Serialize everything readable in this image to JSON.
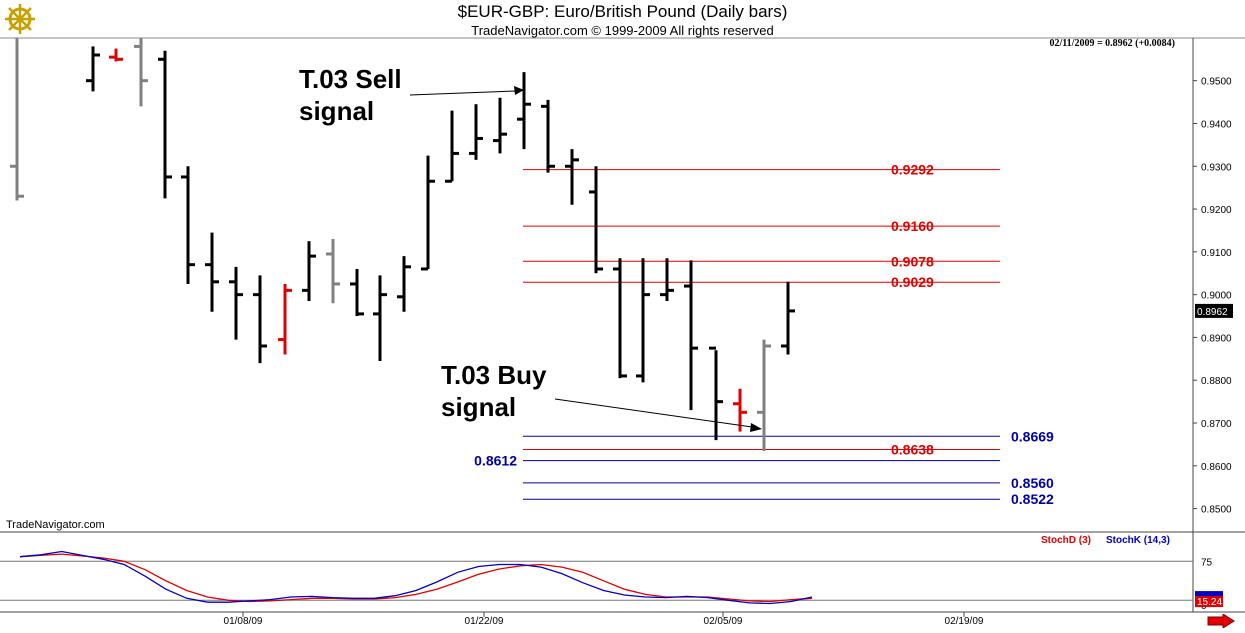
{
  "header": {
    "title": "$EUR-GBP:  Euro/British Pound  (Daily bars)",
    "subtitle": "TradeNavigator.com © 1999-2009 All rights reserved",
    "price_info": "02/11/2009 = 0.8962 (+0.0084)",
    "watermark": "TradeNavigator.com"
  },
  "annotations": {
    "sell": {
      "line1": "T.03 Sell",
      "line2": "signal"
    },
    "buy": {
      "line1": "T.03 Buy",
      "line2": "signal"
    }
  },
  "chart_data": [
    {
      "type": "ohlc",
      "title": "$EUR-GBP:  Euro/British Pound  (Daily bars)",
      "ylim": [
        0.845,
        0.956
      ],
      "y_ticks": [
        "0.9500",
        "0.9400",
        "0.9300",
        "0.9200",
        "0.9100",
        "0.9000",
        "0.8900",
        "0.8800",
        "0.8700",
        "0.8600",
        "0.8500"
      ],
      "x_ticks": [
        "01/08/09",
        "01/22/09",
        "02/05/09",
        "02/19/09"
      ],
      "last_price": "0.8962",
      "bars": [
        {
          "color": "gray",
          "high": 0.96,
          "low": 0.922,
          "open": 0.93,
          "close": 0.923
        },
        {
          "color": "black",
          "high": 0.958,
          "low": 0.9475,
          "open": 0.95,
          "close": 0.956
        },
        {
          "color": "red",
          "high": 0.9575,
          "low": 0.9545,
          "open": 0.9555,
          "close": 0.955
        },
        {
          "color": "gray",
          "high": 0.96,
          "low": 0.944,
          "open": 0.958,
          "close": 0.95
        },
        {
          "color": "black",
          "high": 0.957,
          "low": 0.9225,
          "open": 0.955,
          "close": 0.9275
        },
        {
          "color": "black",
          "high": 0.93,
          "low": 0.9025,
          "open": 0.9275,
          "close": 0.907
        },
        {
          "color": "black",
          "high": 0.9145,
          "low": 0.896,
          "open": 0.907,
          "close": 0.903
        },
        {
          "color": "black",
          "high": 0.9065,
          "low": 0.8895,
          "open": 0.903,
          "close": 0.9
        },
        {
          "color": "black",
          "high": 0.9045,
          "low": 0.884,
          "open": 0.9,
          "close": 0.888
        },
        {
          "color": "red",
          "high": 0.9025,
          "low": 0.886,
          "open": 0.8895,
          "close": 0.901
        },
        {
          "color": "black",
          "high": 0.9125,
          "low": 0.8985,
          "open": 0.901,
          "close": 0.909
        },
        {
          "color": "gray",
          "high": 0.913,
          "low": 0.898,
          "open": 0.9095,
          "close": 0.9025
        },
        {
          "color": "black",
          "high": 0.906,
          "low": 0.895,
          "open": 0.9025,
          "close": 0.8955
        },
        {
          "color": "black",
          "high": 0.9045,
          "low": 0.8845,
          "open": 0.8955,
          "close": 0.9
        },
        {
          "color": "black",
          "high": 0.909,
          "low": 0.896,
          "open": 0.8995,
          "close": 0.9065
        },
        {
          "color": "black",
          "high": 0.9325,
          "low": 0.906,
          "open": 0.906,
          "close": 0.9265
        },
        {
          "color": "black",
          "high": 0.943,
          "low": 0.9265,
          "open": 0.9265,
          "close": 0.933
        },
        {
          "color": "black",
          "high": 0.9445,
          "low": 0.9315,
          "open": 0.933,
          "close": 0.9365
        },
        {
          "color": "black",
          "high": 0.946,
          "low": 0.933,
          "open": 0.936,
          "close": 0.9375
        },
        {
          "color": "black",
          "high": 0.952,
          "low": 0.934,
          "open": 0.941,
          "close": 0.9445
        },
        {
          "color": "black",
          "high": 0.9455,
          "low": 0.9285,
          "open": 0.944,
          "close": 0.93
        },
        {
          "color": "black",
          "high": 0.934,
          "low": 0.921,
          "open": 0.93,
          "close": 0.9315
        },
        {
          "color": "black",
          "high": 0.93,
          "low": 0.905,
          "open": 0.924,
          "close": 0.906
        },
        {
          "color": "black",
          "high": 0.9085,
          "low": 0.8805,
          "open": 0.906,
          "close": 0.881
        },
        {
          "color": "black",
          "high": 0.9085,
          "low": 0.8795,
          "open": 0.881,
          "close": 0.9
        },
        {
          "color": "black",
          "high": 0.9085,
          "low": 0.8985,
          "open": 0.9,
          "close": 0.901
        },
        {
          "color": "black",
          "high": 0.908,
          "low": 0.873,
          "open": 0.902,
          "close": 0.8875
        },
        {
          "color": "black",
          "high": 0.887,
          "low": 0.866,
          "open": 0.8875,
          "close": 0.875
        },
        {
          "color": "red",
          "high": 0.878,
          "low": 0.868,
          "open": 0.8745,
          "close": 0.8725
        },
        {
          "color": "gray",
          "high": 0.8895,
          "low": 0.8635,
          "open": 0.8725,
          "close": 0.888
        },
        {
          "color": "black",
          "high": 0.903,
          "low": 0.886,
          "open": 0.888,
          "close": 0.8962
        }
      ],
      "levels": [
        {
          "value": 0.9292,
          "label": "0.9292",
          "color": "red",
          "label_side": "right"
        },
        {
          "value": 0.916,
          "label": "0.9160",
          "color": "red",
          "label_side": "right"
        },
        {
          "value": 0.9078,
          "label": "0.9078",
          "color": "red",
          "label_side": "right"
        },
        {
          "value": 0.9029,
          "label": "0.9029",
          "color": "red",
          "label_side": "right"
        },
        {
          "value": 0.8669,
          "label": "0.8669",
          "color": "blue",
          "label_side": "right"
        },
        {
          "value": 0.8638,
          "label": "0.8638",
          "color": "red",
          "label_side": "right"
        },
        {
          "value": 0.8612,
          "label": "0.8612",
          "color": "blue",
          "label_side": "left"
        },
        {
          "value": 0.856,
          "label": "0.8560",
          "color": "blue",
          "label_side": "right"
        },
        {
          "value": 0.8522,
          "label": "0.8522",
          "color": "blue",
          "label_side": "right"
        }
      ]
    },
    {
      "type": "line",
      "title": "",
      "legend": [
        "StochD (3)",
        "StochK (14,3)"
      ],
      "ylim": [
        0,
        100
      ],
      "y_ticks": [
        "75",
        "0"
      ],
      "last_value": "15.24",
      "series": [
        {
          "name": "StochD (3)",
          "color": "#e00000",
          "values": [
            82,
            84,
            86,
            83,
            80,
            75,
            62,
            45,
            30,
            20,
            15,
            13,
            14,
            16,
            18,
            18,
            17,
            17,
            19,
            24,
            32,
            43,
            55,
            63,
            68,
            70,
            66,
            58,
            45,
            32,
            24,
            20,
            20,
            20,
            17,
            14,
            13,
            16,
            18
          ]
        },
        {
          "name": "StochK (14,3)",
          "color": "#0000c0",
          "values": [
            82,
            85,
            90,
            84,
            78,
            70,
            52,
            32,
            18,
            12,
            12,
            14,
            16,
            20,
            21,
            19,
            18,
            18,
            22,
            30,
            43,
            58,
            67,
            70,
            70,
            66,
            56,
            42,
            30,
            23,
            20,
            19,
            21,
            19,
            15,
            11,
            10,
            13,
            20
          ]
        }
      ]
    }
  ]
}
